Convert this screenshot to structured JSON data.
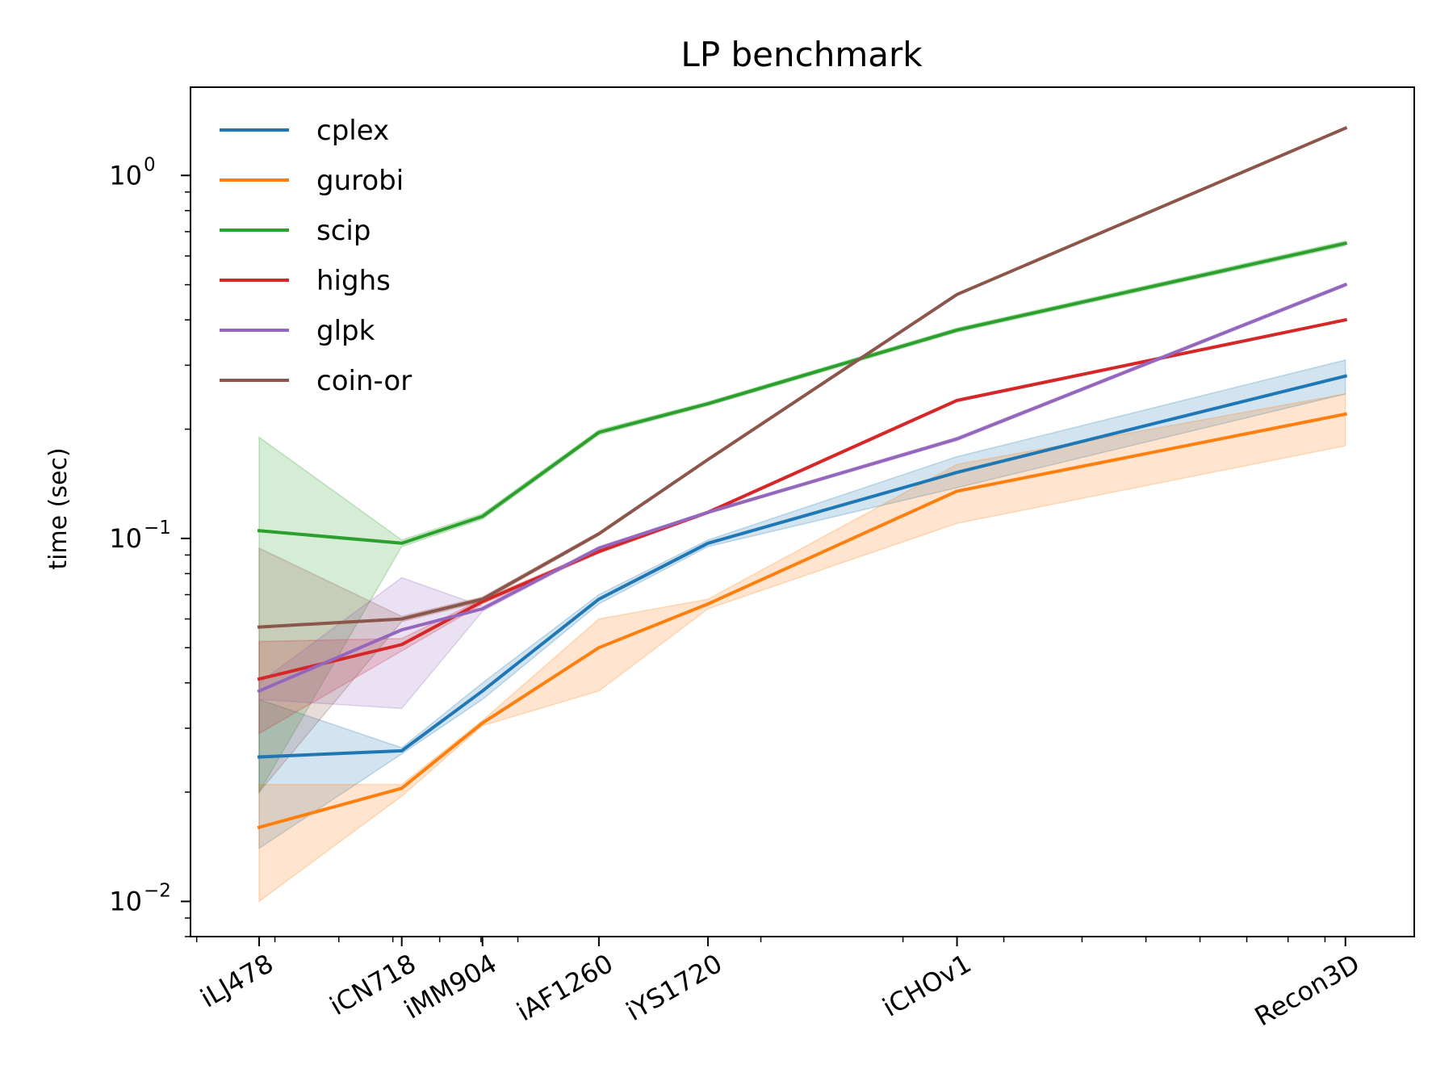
{
  "chart_data": {
    "type": "line",
    "title": "LP benchmark",
    "xlabel": "",
    "ylabel": "time (sec)",
    "y_scale": "log",
    "ylim": [
      0.008,
      1.75
    ],
    "y_ticks": [
      {
        "value": 0.01,
        "base": "10",
        "exp": "−2"
      },
      {
        "value": 0.1,
        "base": "10",
        "exp": "−1"
      },
      {
        "value": 1,
        "base": "10",
        "exp": "0"
      }
    ],
    "x_scale": "log",
    "x_positions": [
      478,
      718,
      904,
      1260,
      1720,
      3500,
      10600
    ],
    "xlim": [
      393,
      12900
    ],
    "categories": [
      "iLJ478",
      "iCN718",
      "iMM904",
      "iAF1260",
      "iYS1720",
      "iCHOv1",
      "Recon3D"
    ],
    "legend_position": "upper-left",
    "grid": false,
    "series": [
      {
        "name": "cplex",
        "color": "#1f77b4",
        "values": [
          0.025,
          0.026,
          0.038,
          0.068,
          0.097,
          0.152,
          0.28
        ],
        "lower": [
          0.014,
          0.0255,
          0.036,
          0.066,
          0.095,
          0.138,
          0.25
        ],
        "upper": [
          0.036,
          0.0265,
          0.04,
          0.07,
          0.099,
          0.168,
          0.31
        ]
      },
      {
        "name": "gurobi",
        "color": "#ff7f0e",
        "values": [
          0.016,
          0.0205,
          0.031,
          0.05,
          0.066,
          0.135,
          0.22
        ],
        "lower": [
          0.01,
          0.0195,
          0.0305,
          0.038,
          0.064,
          0.11,
          0.18
        ],
        "upper": [
          0.021,
          0.021,
          0.0315,
          0.06,
          0.068,
          0.16,
          0.25
        ]
      },
      {
        "name": "scip",
        "color": "#2ca02c",
        "values": [
          0.105,
          0.097,
          0.115,
          0.196,
          0.235,
          0.375,
          0.65
        ],
        "lower": [
          0.02,
          0.095,
          0.113,
          0.193,
          0.232,
          0.37,
          0.64
        ],
        "upper": [
          0.19,
          0.099,
          0.117,
          0.199,
          0.238,
          0.38,
          0.66
        ]
      },
      {
        "name": "highs",
        "color": "#d62728",
        "values": [
          0.041,
          0.051,
          0.067,
          0.092,
          0.118,
          0.24,
          0.4
        ],
        "lower": [
          0.029,
          0.049,
          0.066,
          0.091,
          0.117,
          0.238,
          0.398
        ],
        "upper": [
          0.052,
          0.053,
          0.068,
          0.093,
          0.119,
          0.242,
          0.402
        ]
      },
      {
        "name": "glpk",
        "color": "#9467bd",
        "values": [
          0.038,
          0.056,
          0.064,
          0.094,
          0.118,
          0.188,
          0.5
        ],
        "lower": [
          0.036,
          0.034,
          0.063,
          0.093,
          0.117,
          0.186,
          0.495
        ],
        "upper": [
          0.04,
          0.078,
          0.065,
          0.095,
          0.119,
          0.19,
          0.505
        ]
      },
      {
        "name": "coin-or",
        "color": "#8c564b",
        "values": [
          0.057,
          0.06,
          0.068,
          0.103,
          0.165,
          0.47,
          1.35
        ],
        "lower": [
          0.02,
          0.059,
          0.067,
          0.102,
          0.164,
          0.468,
          1.348
        ],
        "upper": [
          0.094,
          0.061,
          0.069,
          0.104,
          0.166,
          0.472,
          1.352
        ]
      }
    ]
  }
}
